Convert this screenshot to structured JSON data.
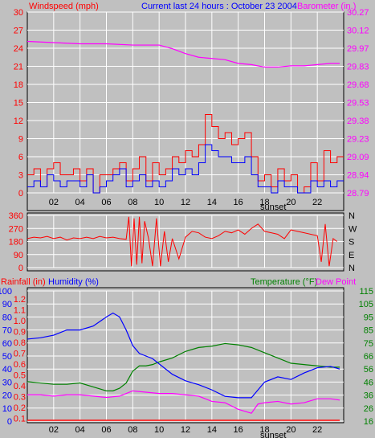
{
  "header": {
    "left_title": "Windspeed (mph)",
    "center_title": "Current last 24 hours : October 23 2004",
    "right_title": "Barometer (in.)"
  },
  "bottom_header": {
    "rainfall": "Rainfall (in)",
    "humidity": "Humidity (%)",
    "temperature": "Temperature (°F)",
    "dewpoint": "Dew Point"
  },
  "annotations": {
    "sunset": "sunset",
    "sunset_bottom": "sunset"
  },
  "colors": {
    "background": "#c0c0c0",
    "grid": "#ffffff",
    "wind": "#ff0000",
    "gust": "#0000ff",
    "barometer": "#ff00ff",
    "humidity": "#0000ff",
    "temperature": "#008000",
    "dewpoint": "#ff00ff",
    "rain": "#ff0000"
  },
  "chart_data": [
    {
      "type": "line",
      "x_ticks": [
        "02",
        "04",
        "06",
        "08",
        "10",
        "12",
        "14",
        "16",
        "18",
        "20",
        "22"
      ],
      "y_left_ticks": [
        "0",
        "3",
        "6",
        "9",
        "12",
        "15",
        "18",
        "21",
        "24",
        "27",
        "30"
      ],
      "y_right_ticks": [
        "28.79",
        "28.94",
        "29.09",
        "29.23",
        "29.38",
        "29.53",
        "29.68",
        "29.83",
        "29.97",
        "30.12",
        "30.27"
      ],
      "y_left_range": [
        0,
        30
      ],
      "y_right_range": [
        28.79,
        30.27
      ],
      "x_range": [
        0,
        24
      ],
      "series": [
        {
          "name": "Barometer",
          "x": [
            0,
            2,
            4,
            6,
            8,
            10,
            11,
            12,
            13,
            14,
            15,
            16,
            17,
            18,
            19,
            20,
            21,
            22,
            23,
            23.7
          ],
          "y": [
            30.03,
            30.02,
            30.01,
            30.01,
            30.0,
            30.0,
            29.97,
            29.93,
            29.9,
            29.89,
            29.88,
            29.85,
            29.84,
            29.82,
            29.82,
            29.83,
            29.83,
            29.84,
            29.85,
            29.85
          ]
        },
        {
          "name": "Windspeed",
          "x": [
            0,
            0.5,
            1,
            1.5,
            2,
            2.5,
            3,
            3.5,
            4,
            4.5,
            5,
            5.5,
            6,
            6.5,
            7,
            7.5,
            8,
            8.5,
            9,
            9.5,
            10,
            10.5,
            11,
            11.5,
            12,
            12.5,
            13,
            13.5,
            14,
            14.5,
            15,
            15.5,
            16,
            16.5,
            17,
            17.5,
            18,
            18.5,
            19,
            19.5,
            20,
            20.5,
            21,
            21.5,
            22,
            22.5,
            23,
            23.5
          ],
          "y": [
            3,
            4,
            1,
            4,
            5,
            3,
            3,
            4,
            2,
            4,
            0,
            3,
            3,
            4,
            5,
            2,
            4,
            6,
            2,
            5,
            3,
            4,
            6,
            5,
            7,
            6,
            8,
            13,
            11,
            9,
            10,
            8,
            9,
            10,
            6,
            2,
            3,
            1,
            4,
            2,
            3,
            0,
            1,
            5,
            2,
            7,
            5,
            6
          ]
        },
        {
          "name": "Gust",
          "x": [
            0,
            0.5,
            1,
            1.5,
            2,
            2.5,
            3,
            3.5,
            4,
            4.5,
            5,
            5.5,
            6,
            6.5,
            7,
            7.5,
            8,
            8.5,
            9,
            9.5,
            10,
            10.5,
            11,
            11.5,
            12,
            12.5,
            13,
            13.5,
            14,
            14.5,
            15,
            15.5,
            16,
            16.5,
            17,
            17.5,
            18,
            18.5,
            19,
            19.5,
            20,
            20.5,
            21,
            21.5,
            22,
            22.5,
            23,
            23.5
          ],
          "y": [
            1,
            2,
            1,
            3,
            2,
            1,
            2,
            2,
            1,
            3,
            0,
            1,
            2,
            3,
            4,
            1,
            2,
            3,
            1,
            2,
            1,
            2,
            4,
            3,
            4,
            3,
            5,
            8,
            7,
            6,
            6,
            5,
            5,
            6,
            3,
            1,
            1,
            0,
            2,
            1,
            1,
            0,
            0,
            2,
            1,
            2,
            1,
            2
          ]
        }
      ]
    },
    {
      "type": "line",
      "x_range": [
        0,
        24
      ],
      "y_left_ticks": [
        "0",
        "90",
        "180",
        "270",
        "360"
      ],
      "y_right_ticks": [
        "N",
        "W",
        "S",
        "E",
        "N"
      ],
      "y_range": [
        0,
        360
      ],
      "series": [
        {
          "name": "Wind Direction",
          "x": [
            0,
            0.5,
            1,
            1.5,
            2,
            2.5,
            3,
            3.5,
            4,
            4.5,
            5,
            5.5,
            6,
            6.5,
            7,
            7.5,
            7.7,
            7.9,
            8.1,
            8.3,
            8.5,
            8.7,
            8.9,
            9.2,
            9.5,
            9.8,
            10.1,
            10.4,
            10.7,
            11,
            11.5,
            12,
            12.5,
            13,
            13.5,
            14,
            14.5,
            15,
            15.5,
            16,
            16.5,
            17,
            17.5,
            18,
            18.5,
            19,
            19.5,
            20,
            20.5,
            21,
            21.5,
            22,
            22.3,
            22.6,
            22.9,
            23.2,
            23.5
          ],
          "y": [
            200,
            210,
            205,
            215,
            200,
            210,
            190,
            205,
            200,
            210,
            200,
            215,
            205,
            210,
            200,
            195,
            350,
            10,
            340,
            20,
            350,
            30,
            320,
            200,
            10,
            340,
            10,
            250,
            40,
            200,
            60,
            210,
            250,
            240,
            210,
            200,
            220,
            250,
            240,
            260,
            230,
            270,
            300,
            250,
            240,
            230,
            200,
            260,
            250,
            240,
            230,
            220,
            40,
            300,
            10,
            200,
            180
          ]
        }
      ]
    },
    {
      "type": "line",
      "x_range": [
        0,
        24
      ],
      "y_humidity_ticks": [
        "0",
        "10",
        "20",
        "30",
        "40",
        "50",
        "60",
        "70",
        "80",
        "90",
        "100"
      ],
      "y_rain_ticks": [
        "0.0",
        "0.1",
        "0.2",
        "0.3",
        "0.4",
        "0.5",
        "0.6",
        "0.7",
        "0.8",
        "0.9",
        "1.0",
        "1.1",
        "1.2"
      ],
      "y_temp_ticks": [
        "16",
        "26",
        "36",
        "46",
        "56",
        "66",
        "75",
        "85",
        "95",
        "105",
        "115"
      ],
      "humidity_range": [
        0,
        100
      ],
      "temp_range": [
        16,
        115
      ],
      "series": [
        {
          "name": "Humidity",
          "x": [
            0,
            1,
            2,
            3,
            4,
            5,
            6,
            6.5,
            7,
            7.5,
            8,
            8.5,
            9,
            9.5,
            10,
            11,
            12,
            13,
            14,
            15,
            16,
            17,
            17.5,
            18,
            19,
            20,
            21,
            22,
            23,
            23.7
          ],
          "y": [
            63,
            64,
            66,
            70,
            70,
            73,
            80,
            83,
            80,
            70,
            58,
            52,
            50,
            48,
            44,
            36,
            31,
            28,
            24,
            19,
            18,
            18,
            24,
            30,
            34,
            32,
            37,
            41,
            42,
            40
          ]
        },
        {
          "name": "Temperature",
          "x": [
            0,
            1,
            2,
            3,
            4,
            5,
            6,
            6.5,
            7,
            7.5,
            8,
            8.5,
            9,
            9.5,
            10,
            11,
            12,
            13,
            14,
            15,
            16,
            17,
            18,
            19,
            20,
            21,
            22,
            23,
            23.7
          ],
          "y": [
            46,
            45,
            44,
            44,
            45,
            42,
            39,
            39,
            41,
            45,
            54,
            58,
            58,
            59,
            61,
            64,
            69,
            72,
            73,
            75,
            74,
            72,
            68,
            64,
            60,
            59,
            58,
            57,
            57
          ]
        },
        {
          "name": "Dew Point",
          "x": [
            0,
            1,
            2,
            3,
            4,
            5,
            6,
            7,
            8,
            9,
            10,
            11,
            12,
            13,
            14,
            15,
            16,
            17,
            17.5,
            18,
            19,
            20,
            21,
            22,
            23,
            23.7
          ],
          "y": [
            36,
            36,
            35,
            36,
            36,
            35,
            34,
            35,
            39,
            38,
            37,
            37,
            36,
            35,
            31,
            30,
            25,
            22,
            29,
            30,
            31,
            29,
            30,
            33,
            33,
            32
          ]
        },
        {
          "name": "Rainfall",
          "x": [
            0,
            23.7
          ],
          "y": [
            0.0,
            0.0
          ]
        }
      ]
    }
  ]
}
